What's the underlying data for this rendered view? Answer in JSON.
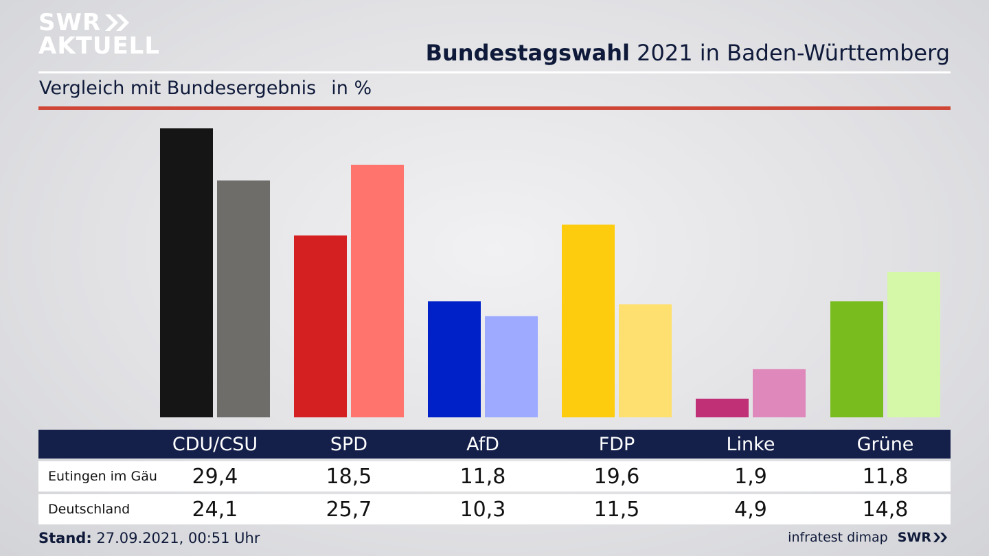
{
  "header": {
    "logo_line1": "SWR",
    "logo_line2": "AKTUELL",
    "title_bold": "Bundestagswahl",
    "title_rest": " 2021 in Baden-Württemberg",
    "subtitle": "Vergleich mit Bundesergebnis",
    "unit": "in %"
  },
  "colors": {
    "accent_rule": "#cf4636",
    "table_header": "#14204a"
  },
  "chart_data": {
    "type": "bar",
    "categories": [
      "CDU/CSU",
      "SPD",
      "AfD",
      "FDP",
      "Linke",
      "Grüne"
    ],
    "series": [
      {
        "name": "Eutingen im Gäu",
        "values": [
          29.4,
          18.5,
          11.8,
          19.6,
          1.9,
          11.8
        ],
        "colors": [
          "#151515",
          "#d42020",
          "#0021c8",
          "#fdcc0e",
          "#c03077",
          "#78bc1e"
        ]
      },
      {
        "name": "Deutschland",
        "values": [
          24.1,
          25.7,
          10.3,
          11.5,
          4.9,
          14.8
        ],
        "colors": [
          "#6f6d6a",
          "#ff746c",
          "#9daaff",
          "#fde06f",
          "#df88bb",
          "#d5f7a8"
        ]
      }
    ],
    "ylim": [
      0,
      30
    ]
  },
  "table": {
    "row_labels": [
      "Eutingen im Gäu",
      "Deutschland"
    ],
    "rows": [
      [
        "29,4",
        "18,5",
        "11,8",
        "19,6",
        "1,9",
        "11,8"
      ],
      [
        "24,1",
        "25,7",
        "10,3",
        "11,5",
        "4,9",
        "14,8"
      ]
    ]
  },
  "footer": {
    "stand_label": "Stand:",
    "stand_value": " 27.09.2021, 00:51 Uhr",
    "source": "infratest dimap",
    "brand": "SWR"
  }
}
